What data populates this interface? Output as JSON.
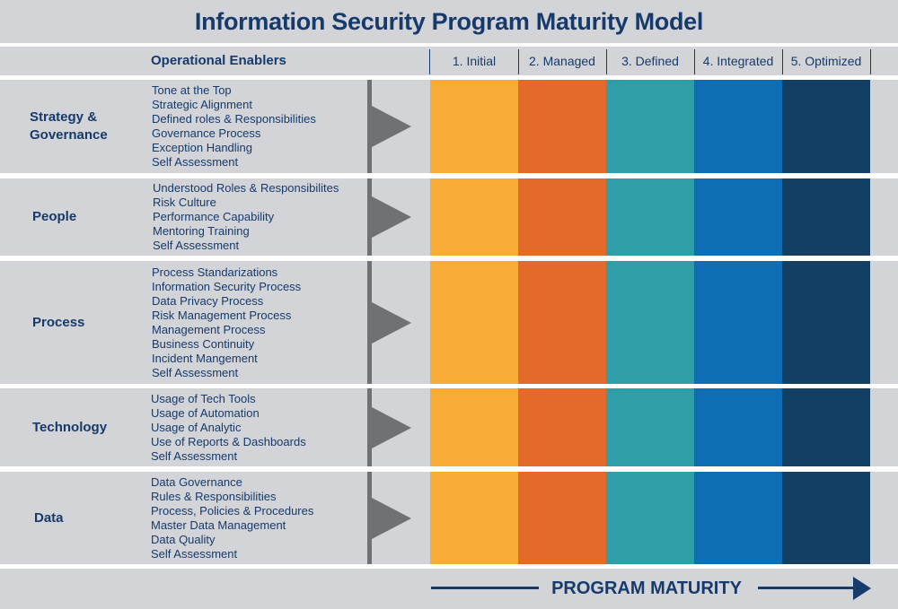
{
  "title": "Information Security Program Maturity Model",
  "header": {
    "enablers_label": "Operational Enablers",
    "levels": [
      "1. Initial",
      "2. Managed",
      "3. Defined",
      "4. Integrated",
      "5. Optimized"
    ]
  },
  "level_colors": [
    "#f8ab35",
    "#e46a2b",
    "#2f9ea9",
    "#0f6db3",
    "#123f63"
  ],
  "rows": [
    {
      "label_lines": [
        "Strategy &",
        "Governance"
      ],
      "items": [
        "Tone at the Top",
        "Strategic Alignment",
        "Defined roles & Responsibilities",
        "Governance  Process",
        "Exception Handling",
        "Self Assessment"
      ]
    },
    {
      "label_lines": [
        "People"
      ],
      "items": [
        "Understood Roles & Responsibilites",
        "Risk Culture",
        "Performance Capability",
        "Mentoring Training",
        "Self Assessment"
      ]
    },
    {
      "label_lines": [
        "Process"
      ],
      "items": [
        "Process Standarizations",
        "Information Security Process",
        "Data Privacy Process",
        "Risk Management Process",
        "Management Process",
        "Business Continuity",
        "Incident Mangement",
        "Self Assessment"
      ]
    },
    {
      "label_lines": [
        "Technology"
      ],
      "items": [
        "Usage of Tech Tools",
        "Usage of Automation",
        "Usage of Analytic",
        "Use of Reports & Dashboards",
        "Self Assessment"
      ]
    },
    {
      "label_lines": [
        "Data"
      ],
      "items": [
        "Data Governance",
        "Rules & Responsibilities",
        "Process, Policies & Procedures",
        "Master Data Management",
        "Data Quality",
        "Self Assessment"
      ]
    }
  ],
  "footer": {
    "label": "PROGRAM MATURITY"
  }
}
